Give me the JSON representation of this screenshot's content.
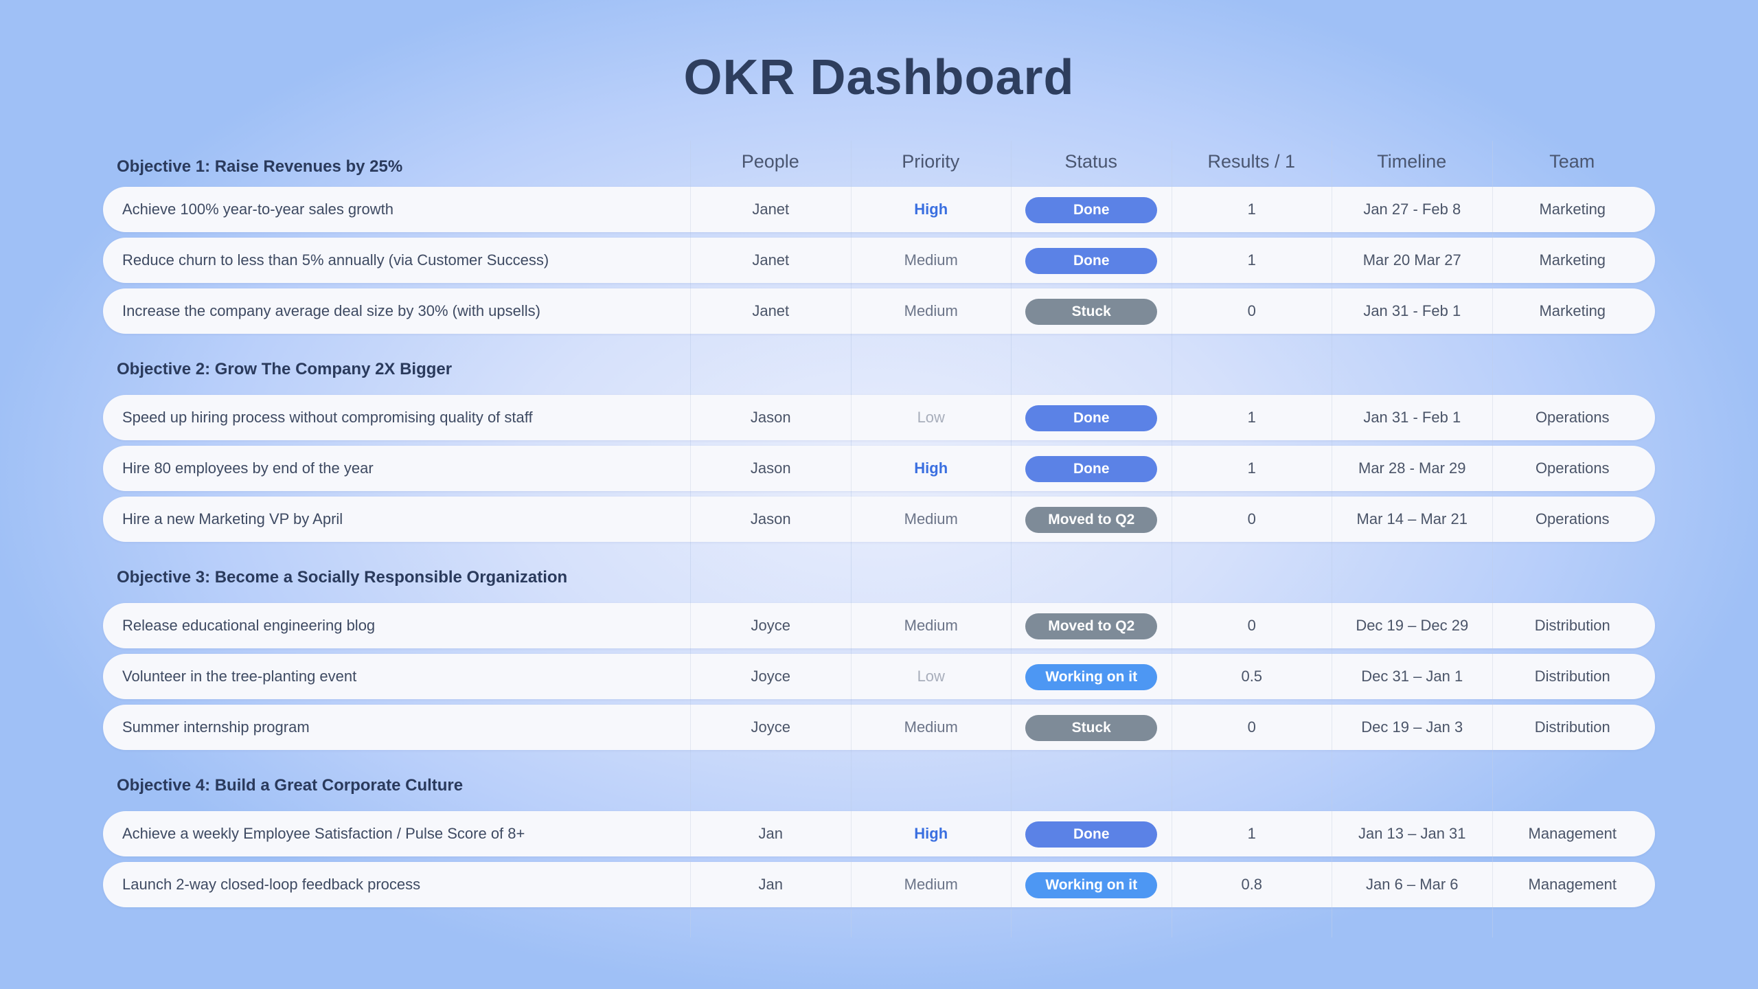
{
  "title": "OKR Dashboard",
  "columns": {
    "people": "People",
    "priority": "Priority",
    "status": "Status",
    "results": "Results / 1",
    "timeline": "Timeline",
    "team": "Team"
  },
  "colors": {
    "high": "#3a6fe0",
    "done": "#5b82e6",
    "stuck": "#7e8b98",
    "moved": "#7e8b98",
    "working": "#4d97f3",
    "title": "#2e3e5e"
  },
  "objectives": [
    {
      "title": "Objective 1: Raise Revenues by 25%",
      "rows": [
        {
          "key_result": "Achieve 100% year-to-year sales growth",
          "people": "Janet",
          "priority": "High",
          "status": "Done",
          "result": "1",
          "timeline": "Jan 27 - Feb 8",
          "team": "Marketing"
        },
        {
          "key_result": "Reduce churn to less than 5% annually (via Customer Success)",
          "people": "Janet",
          "priority": "Medium",
          "status": "Done",
          "result": "1",
          "timeline": "Mar 20 Mar 27",
          "team": "Marketing"
        },
        {
          "key_result": "Increase the company average deal size by 30% (with upsells)",
          "people": "Janet",
          "priority": "Medium",
          "status": "Stuck",
          "result": "0",
          "timeline": "Jan 31 - Feb 1",
          "team": "Marketing"
        }
      ]
    },
    {
      "title": "Objective 2: Grow The Company 2X Bigger",
      "rows": [
        {
          "key_result": "Speed up hiring process without compromising quality of staff",
          "people": "Jason",
          "priority": "Low",
          "status": "Done",
          "result": "1",
          "timeline": "Jan 31 - Feb 1",
          "team": "Operations"
        },
        {
          "key_result": "Hire 80 employees by end of the year",
          "people": "Jason",
          "priority": "High",
          "status": "Done",
          "result": "1",
          "timeline": "Mar 28 - Mar 29",
          "team": "Operations"
        },
        {
          "key_result": "Hire a new Marketing VP by April",
          "people": "Jason",
          "priority": "Medium",
          "status": "Moved to Q2",
          "result": "0",
          "timeline": "Mar 14 – Mar 21",
          "team": "Operations"
        }
      ]
    },
    {
      "title": "Objective 3: Become a Socially Responsible Organization",
      "rows": [
        {
          "key_result": "Release educational engineering blog",
          "people": "Joyce",
          "priority": "Medium",
          "status": "Moved to Q2",
          "result": "0",
          "timeline": "Dec 19 – Dec 29",
          "team": "Distribution"
        },
        {
          "key_result": "Volunteer in the tree-planting event",
          "people": "Joyce",
          "priority": "Low",
          "status": "Working on it",
          "result": "0.5",
          "timeline": "Dec 31 – Jan 1",
          "team": "Distribution"
        },
        {
          "key_result": "Summer internship program",
          "people": "Joyce",
          "priority": "Medium",
          "status": "Stuck",
          "result": "0",
          "timeline": "Dec 19 – Jan 3",
          "team": "Distribution"
        }
      ]
    },
    {
      "title": "Objective 4: Build a Great Corporate Culture",
      "rows": [
        {
          "key_result": "Achieve a weekly Employee Satisfaction / Pulse Score of 8+",
          "people": "Jan",
          "priority": "High",
          "status": "Done",
          "result": "1",
          "timeline": "Jan 13 – Jan 31",
          "team": "Management"
        },
        {
          "key_result": "Launch 2-way closed-loop feedback process",
          "people": "Jan",
          "priority": "Medium",
          "status": "Working on it",
          "result": "0.8",
          "timeline": "Jan 6 – Mar 6",
          "team": "Management"
        }
      ]
    }
  ]
}
